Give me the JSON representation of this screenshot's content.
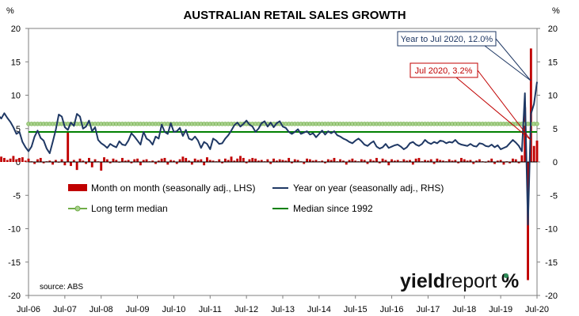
{
  "chart_data": {
    "type": "bar+line",
    "title": "AUSTRALIAN RETAIL SALES GROWTH",
    "left_axis_unit": "%",
    "right_axis_unit": "%",
    "ylim": [
      -20,
      20
    ],
    "y_ticks": [
      20,
      15,
      10,
      5,
      0,
      -5,
      -10,
      -15,
      -20
    ],
    "x_tick_labels": [
      "Jul-06",
      "Jul-07",
      "Jul-08",
      "Jul-09",
      "Jul-10",
      "Jul-11",
      "Jul-12",
      "Jul-13",
      "Jul-14",
      "Jul-15",
      "Jul-16",
      "Jul-17",
      "Jul-18",
      "Jul-19",
      "Jul-20"
    ],
    "start_month": "Jul-06",
    "monthly_series": {
      "name": "Month on month (seasonally adj., LHS)",
      "color": "#c00000",
      "values": [
        0.5,
        0.7,
        0.4,
        0.6,
        0.9,
        1.1,
        0.3,
        0.8,
        0.4,
        0.6,
        0.9,
        0.5,
        0.4,
        0.8,
        0.6,
        0.3,
        0.5,
        0.9,
        0.4,
        0.6,
        0.7,
        0.2,
        0.5,
        0.1,
        -0.3,
        0.4,
        0.6,
        -0.2,
        0.1,
        0.2,
        -0.4,
        0.3,
        -0.1,
        0.4,
        -0.5,
        4.5,
        -0.6,
        0.3,
        -1.2,
        0.5,
        0.2,
        -0.3,
        0.6,
        -0.8,
        0.4,
        0.1,
        -1.3,
        0.7,
        0.4,
        -0.2,
        0.5,
        0.3,
        -0.1,
        0.6,
        0.2,
        0.3,
        -0.2,
        0.4,
        0.5,
        -0.5,
        0.3,
        0.4,
        0.1,
        0.2,
        -0.3,
        0.2,
        0.5,
        0.6,
        -0.4,
        0.3,
        0.2,
        -0.3,
        0.4,
        0.8,
        0.6,
        0.2,
        -0.4,
        0.5,
        0.3,
        0.4,
        -0.5,
        0.7,
        0.3,
        0.2,
        0.1,
        0.4,
        -0.2,
        0.5,
        0.3,
        0.8,
        0.2,
        0.5,
        0.9,
        0.6,
        -0.2,
        0.4,
        0.6,
        0.5,
        0.2,
        0.3,
        0.1,
        0.4,
        -0.3,
        0.5,
        0.2,
        0.4,
        0.3,
        0.2,
        0.6,
        -0.2,
        0.4,
        0.3,
        0.1,
        -0.3,
        0.5,
        0.4,
        0.2,
        0.3,
        0.1,
        0.2,
        -0.2,
        0.4,
        0.3,
        0.6,
        0.1,
        0.4,
        0.2,
        -0.4,
        0.3,
        0.5,
        0.2,
        0.1,
        0.4,
        0.3,
        -0.3,
        0.4,
        0.2,
        0.6,
        -0.2,
        0.5,
        0.3,
        -0.5,
        0.4,
        0.2,
        0.3,
        0.1,
        0.4,
        0.2,
        0.3,
        -0.4,
        0.5,
        0.6,
        0.1,
        0.3,
        0.2,
        0.4,
        -0.3,
        0.5,
        0.3,
        0.2,
        0.1,
        0.4,
        0.2,
        0.3,
        -0.2,
        0.6,
        0.4,
        0.2,
        0.3,
        -0.3,
        0.2,
        0.4,
        0.1,
        -0.1,
        0.2,
        0.5,
        -0.3,
        0.2,
        0.3,
        -0.4,
        0.1,
        -0.2,
        0.5,
        0.4,
        -0.2,
        1.0,
        8.2,
        -17.7,
        17.0,
        2.4,
        3.2
      ],
      "last_value": 3.2
    },
    "annual_series": {
      "name": "Year on year (seasonally adj., RHS)",
      "color": "#1f3864",
      "values": [
        5.5,
        6.0,
        5.8,
        6.2,
        7.0,
        6.8,
        7.5,
        6.6,
        6.4,
        7.2,
        7.5,
        8.2,
        7.7,
        8.5,
        7.5,
        6.8,
        7.0,
        6.5,
        7.3,
        6.6,
        6.0,
        5.2,
        4.2,
        4.5,
        3.0,
        2.2,
        1.6,
        2.3,
        3.8,
        4.7,
        3.6,
        3.2,
        2.0,
        1.3,
        3.0,
        4.8,
        7.1,
        6.8,
        5.2,
        4.8,
        5.9,
        5.4,
        7.2,
        6.8,
        5.0,
        5.3,
        6.2,
        4.6,
        5.2,
        3.3,
        2.8,
        2.5,
        2.1,
        2.7,
        2.4,
        2.2,
        3.1,
        2.6,
        2.5,
        3.2,
        4.3,
        3.8,
        3.2,
        2.6,
        4.5,
        3.5,
        3.2,
        2.6,
        3.8,
        3.5,
        5.6,
        4.5,
        4.2,
        5.8,
        4.5,
        4.6,
        5.1,
        3.9,
        4.8,
        3.5,
        3.3,
        3.8,
        3.2,
        2.1,
        3.0,
        2.7,
        1.9,
        3.5,
        3.2,
        2.7,
        2.8,
        3.5,
        4.0,
        4.7,
        5.5,
        5.9,
        5.3,
        5.7,
        6.2,
        5.6,
        5.3,
        4.5,
        5.0,
        5.8,
        6.1,
        5.3,
        5.9,
        5.2,
        5.8,
        6.1,
        5.3,
        5.1,
        4.5,
        4.2,
        4.5,
        4.9,
        4.2,
        4.4,
        4.6,
        4.1,
        4.3,
        3.7,
        4.2,
        4.7,
        4.1,
        4.6,
        4.3,
        4.6,
        4.0,
        3.8,
        3.5,
        3.3,
        3.0,
        2.8,
        3.2,
        3.5,
        3.1,
        2.6,
        2.4,
        2.8,
        3.1,
        2.3,
        2.0,
        2.2,
        2.7,
        2.1,
        2.3,
        2.5,
        2.6,
        2.3,
        1.9,
        2.2,
        2.8,
        3.0,
        2.6,
        2.4,
        2.7,
        3.3,
        2.9,
        2.7,
        3.0,
        2.8,
        3.2,
        3.1,
        2.8,
        3.0,
        2.9,
        3.3,
        2.8,
        2.6,
        2.5,
        2.4,
        2.7,
        2.4,
        2.3,
        2.8,
        2.7,
        2.4,
        2.3,
        2.6,
        2.2,
        2.5,
        1.9,
        2.1,
        2.3,
        2.8,
        3.3,
        2.9,
        2.4,
        1.6,
        10.3,
        -9.4,
        7.2,
        8.7,
        12.0
      ],
      "last_value": 12.0
    },
    "long_term_median": {
      "name": "Long term median",
      "value": 5.7,
      "color": "#70ad47"
    },
    "median_since_1992": {
      "name": "Median since 1992",
      "value": 4.5,
      "color": "#008000"
    },
    "annotations": [
      {
        "text": "Year to Jul 2020, 12.0%",
        "color": "#1f3864"
      },
      {
        "text": "Jul 2020, 3.2%",
        "color": "#c00000"
      }
    ],
    "legend_placement": "lower-middle",
    "grid": false
  },
  "source": "source: ABS",
  "brand": {
    "part1": "yield",
    "part2": "report",
    "mark": "%"
  }
}
